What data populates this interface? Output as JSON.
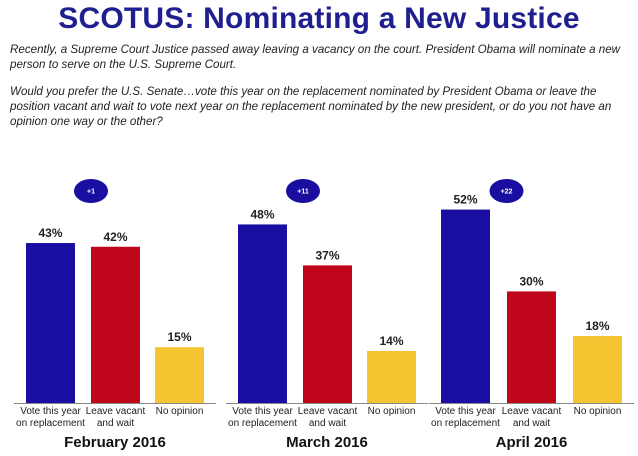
{
  "header": {
    "title": "SCOTUS: Nominating a New Justice",
    "intro": "Recently, a Supreme Court Justice passed away leaving a vacancy on the court. President Obama will nominate a new person to serve on the U.S. Supreme Court.",
    "question": "Would you prefer the U.S. Senate…vote this year on the replacement nominated by President Obama or leave the position vacant and wait to vote next year on the replacement nominated by the new president, or do you not have an opinion one way or the other?"
  },
  "colors": {
    "vote": "#1a0ea0",
    "wait": "#c0061a",
    "none": "#f5c431",
    "badge": "#1a0ea0",
    "axis": "#888888"
  },
  "chart_data": [
    {
      "type": "bar",
      "title": "February 2016",
      "badge": "+1",
      "categories": [
        [
          "Vote this year",
          "on replacement"
        ],
        [
          "Leave vacant",
          "and wait"
        ],
        [
          "No opinion"
        ]
      ],
      "values": [
        43,
        42,
        15
      ],
      "value_labels": [
        "43%",
        "42%",
        "15%"
      ],
      "ylim": [
        0,
        60
      ]
    },
    {
      "type": "bar",
      "title": "March 2016",
      "badge": "+11",
      "categories": [
        [
          "Vote this year",
          "on replacement"
        ],
        [
          "Leave vacant",
          "and wait"
        ],
        [
          "No opinion"
        ]
      ],
      "values": [
        48,
        37,
        14
      ],
      "value_labels": [
        "48%",
        "37%",
        "14%"
      ],
      "ylim": [
        0,
        60
      ]
    },
    {
      "type": "bar",
      "title": "April 2016",
      "badge": "+22",
      "categories": [
        [
          "Vote this year",
          "on replacement"
        ],
        [
          "Leave vacant",
          "and wait"
        ],
        [
          "No opinion"
        ]
      ],
      "values": [
        52,
        30,
        18
      ],
      "value_labels": [
        "52%",
        "30%",
        "18%"
      ],
      "ylim": [
        0,
        60
      ]
    }
  ]
}
